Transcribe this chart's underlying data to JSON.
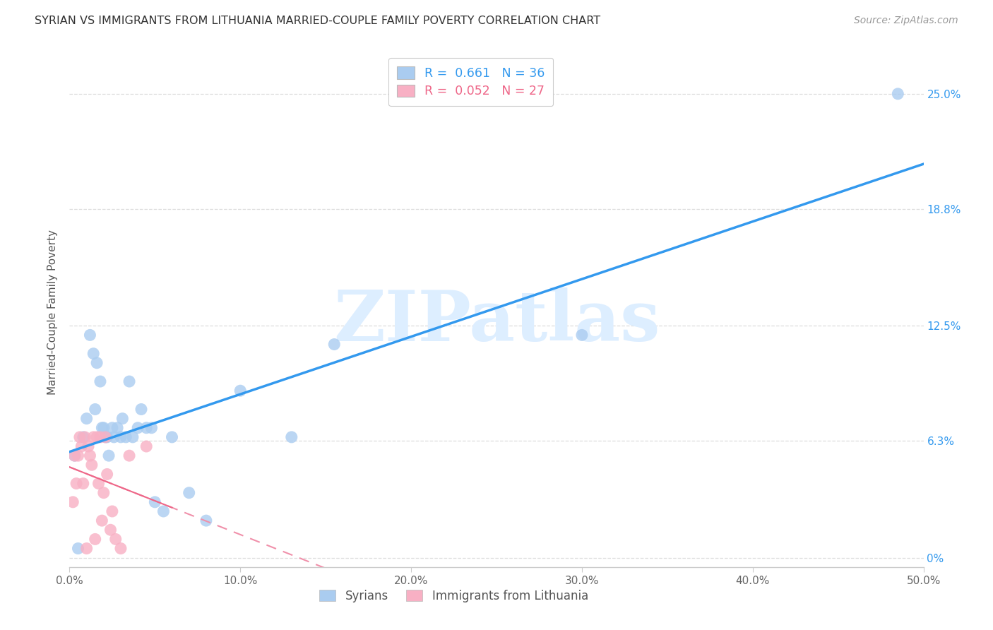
{
  "title": "SYRIAN VS IMMIGRANTS FROM LITHUANIA MARRIED-COUPLE FAMILY POVERTY CORRELATION CHART",
  "source": "Source: ZipAtlas.com",
  "ylabel": "Married-Couple Family Poverty",
  "xlim": [
    0.0,
    0.5
  ],
  "ylim": [
    -0.005,
    0.27
  ],
  "xtick_vals": [
    0.0,
    0.1,
    0.2,
    0.3,
    0.4,
    0.5
  ],
  "xtick_labels": [
    "0.0%",
    "10.0%",
    "20.0%",
    "30.0%",
    "40.0%",
    "50.0%"
  ],
  "ytick_vals": [
    0.0,
    0.063,
    0.125,
    0.188,
    0.25
  ],
  "ytick_labels_right": [
    "0%",
    "6.3%",
    "12.5%",
    "18.8%",
    "25.0%"
  ],
  "syrian_color": "#aaccf0",
  "lithuania_color": "#f8b0c4",
  "syrian_line_color": "#3399ee",
  "lithuania_solid_color": "#ee6688",
  "lithuania_dash_color": "#f090aa",
  "watermark_text": "ZIPatlas",
  "watermark_color": "#ddeeff",
  "background_color": "#ffffff",
  "grid_color": "#dddddd",
  "syrian_R": "0.661",
  "syrian_N": "36",
  "lithuania_R": "0.052",
  "lithuania_N": "27",
  "syrian_x": [
    0.003,
    0.005,
    0.008,
    0.01,
    0.012,
    0.014,
    0.015,
    0.016,
    0.018,
    0.019,
    0.02,
    0.021,
    0.022,
    0.023,
    0.025,
    0.026,
    0.028,
    0.03,
    0.031,
    0.033,
    0.035,
    0.037,
    0.04,
    0.042,
    0.045,
    0.048,
    0.05,
    0.055,
    0.06,
    0.07,
    0.08,
    0.1,
    0.13,
    0.155,
    0.3,
    0.485
  ],
  "syrian_y": [
    0.055,
    0.005,
    0.065,
    0.075,
    0.12,
    0.11,
    0.08,
    0.105,
    0.095,
    0.07,
    0.07,
    0.065,
    0.065,
    0.055,
    0.07,
    0.065,
    0.07,
    0.065,
    0.075,
    0.065,
    0.095,
    0.065,
    0.07,
    0.08,
    0.07,
    0.07,
    0.03,
    0.025,
    0.065,
    0.035,
    0.02,
    0.09,
    0.065,
    0.115,
    0.12,
    0.25
  ],
  "lithuania_x": [
    0.002,
    0.003,
    0.004,
    0.005,
    0.006,
    0.007,
    0.008,
    0.009,
    0.01,
    0.011,
    0.012,
    0.013,
    0.014,
    0.015,
    0.016,
    0.017,
    0.018,
    0.019,
    0.02,
    0.021,
    0.022,
    0.024,
    0.025,
    0.027,
    0.03,
    0.035,
    0.045
  ],
  "lithuania_y": [
    0.03,
    0.055,
    0.04,
    0.055,
    0.065,
    0.06,
    0.04,
    0.065,
    0.005,
    0.06,
    0.055,
    0.05,
    0.065,
    0.01,
    0.065,
    0.04,
    0.065,
    0.02,
    0.035,
    0.065,
    0.045,
    0.015,
    0.025,
    0.01,
    0.005,
    0.055,
    0.06
  ]
}
